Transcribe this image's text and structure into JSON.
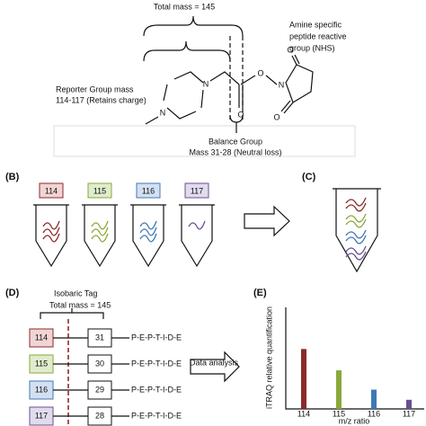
{
  "panel_a": {
    "total_mass": "Total mass = 145",
    "amine": [
      "Amine specific",
      "peptide reactive",
      "group (NHS)"
    ],
    "reporter": [
      "Reporter Group mass",
      "114-117 (Retains charge)"
    ],
    "balance": [
      "Balance Group",
      "Mass 31-28 (Neutral loss)"
    ],
    "atoms": [
      "N",
      "N",
      "O",
      "O",
      "N",
      "O",
      "O"
    ]
  },
  "panel_b": {
    "label": "(B)",
    "tags": [
      "114",
      "115",
      "116",
      "117"
    ]
  },
  "panel_c": {
    "label": "(C)"
  },
  "panel_d": {
    "label": "(D)",
    "title": [
      "Isobaric Tag",
      "Total mass = 145"
    ],
    "rows": [
      {
        "reporter": "114",
        "balance": "31",
        "peptide": "P-E-P-T-I-D-E"
      },
      {
        "reporter": "115",
        "balance": "30",
        "peptide": "P-E-P-T-I-D-E"
      },
      {
        "reporter": "116",
        "balance": "29",
        "peptide": "P-E-P-T-I-D-E"
      },
      {
        "reporter": "117",
        "balance": "28",
        "peptide": "P-E-P-T-I-D-E"
      }
    ],
    "arrow": "Data analysis"
  },
  "chart_data": {
    "type": "bar",
    "label": "(E)",
    "y_label": "iTRAQ relative quantification",
    "x_label": "m/z ratio",
    "categories": [
      "114",
      "115",
      "116",
      "117"
    ],
    "values": [
      59,
      38,
      19,
      9
    ],
    "colors": [
      "#8b2a2a",
      "#8aa83a",
      "#3f78b5",
      "#6a4f8f"
    ],
    "ylim": [
      0,
      100
    ]
  }
}
